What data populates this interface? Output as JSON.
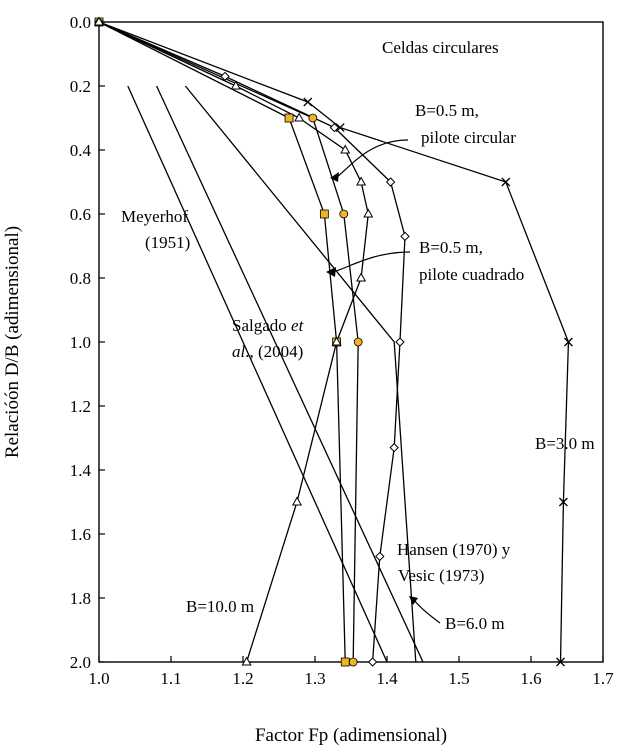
{
  "chart_data": {
    "type": "line",
    "xlabel": "Factor Fp (adimensional)",
    "ylabel": "Relacióón D/B (adimensional)",
    "xlim": [
      1.0,
      1.7
    ],
    "ylim": [
      0.0,
      2.0
    ],
    "y_inverted": true,
    "grid": false,
    "x_ticks": [
      "1.0",
      "1.1",
      "1.2",
      "1.3",
      "1.4",
      "1.5",
      "1.6",
      "1.7"
    ],
    "y_ticks": [
      "0.0",
      "0.2",
      "0.4",
      "0.6",
      "0.8",
      "1.0",
      "1.2",
      "1.4",
      "1.6",
      "1.8",
      "2.0"
    ],
    "series": [
      {
        "marker": "cross",
        "color": "#000000",
        "points": [
          [
            1.0,
            0.0
          ],
          [
            1.29,
            0.25
          ],
          [
            1.335,
            0.33
          ],
          [
            1.565,
            0.5
          ],
          [
            1.652,
            1.0
          ],
          [
            1.645,
            1.5
          ],
          [
            1.641,
            2.0
          ]
        ]
      },
      {
        "marker": "circle",
        "color": "#f0b323",
        "points": [
          [
            1.0,
            0.0
          ],
          [
            1.297,
            0.3
          ],
          [
            1.34,
            0.6
          ],
          [
            1.36,
            1.0
          ],
          [
            1.353,
            2.0
          ]
        ]
      },
      {
        "marker": "square",
        "color": "#f0b323",
        "points": [
          [
            1.0,
            0.0
          ],
          [
            1.264,
            0.3
          ],
          [
            1.313,
            0.6
          ],
          [
            1.33,
            1.0
          ],
          [
            1.342,
            2.0
          ]
        ]
      },
      {
        "marker": "diamond",
        "color": "#000000",
        "points": [
          [
            1.0,
            0.0
          ],
          [
            1.175,
            0.17
          ],
          [
            1.327,
            0.33
          ],
          [
            1.405,
            0.5
          ],
          [
            1.425,
            0.67
          ],
          [
            1.418,
            1.0
          ],
          [
            1.41,
            1.33
          ],
          [
            1.39,
            1.67
          ],
          [
            1.38,
            2.0
          ]
        ]
      },
      {
        "marker": "triangle",
        "color": "#000000",
        "points": [
          [
            1.0,
            0.0
          ],
          [
            1.19,
            0.2
          ],
          [
            1.278,
            0.3
          ],
          [
            1.342,
            0.4
          ],
          [
            1.364,
            0.5
          ],
          [
            1.374,
            0.6
          ],
          [
            1.364,
            0.8
          ],
          [
            1.33,
            1.0
          ],
          [
            1.275,
            1.5
          ],
          [
            1.205,
            2.0
          ]
        ]
      }
    ],
    "reference_lines": [
      {
        "name": "Meyerhof (1951)",
        "points": [
          [
            1.04,
            0.2
          ],
          [
            1.4,
            2.0
          ]
        ]
      },
      {
        "name": "Salgado et al., (2004)",
        "points": [
          [
            1.08,
            0.2
          ],
          [
            1.45,
            2.0
          ]
        ]
      },
      {
        "name": "Hansen (1970) y Vesic (1973)",
        "points": [
          [
            1.12,
            0.2
          ],
          [
            1.41,
            1.0
          ],
          [
            1.44,
            2.0
          ]
        ]
      }
    ],
    "annotations": {
      "celdas": "Celdas circulares",
      "b05c_1": "B=0.5 m,",
      "b05c_2": "pilote circular",
      "b05s_1": "B=0.5 m,",
      "b05s_2": "pilote cuadrado",
      "meyerhof_1": "Meyerhof",
      "meyerhof_2": "(1951)",
      "salgado_1a": "Salgado ",
      "salgado_1b": "et",
      "salgado_2a": "al",
      "salgado_2b": "., (2004)",
      "b30": "B=3.0 m",
      "hansen_1": "Hansen (1970) y",
      "hansen_2": "Vesic (1973)",
      "b100": "B=10.0 m",
      "b60": "B=6.0 m"
    }
  }
}
